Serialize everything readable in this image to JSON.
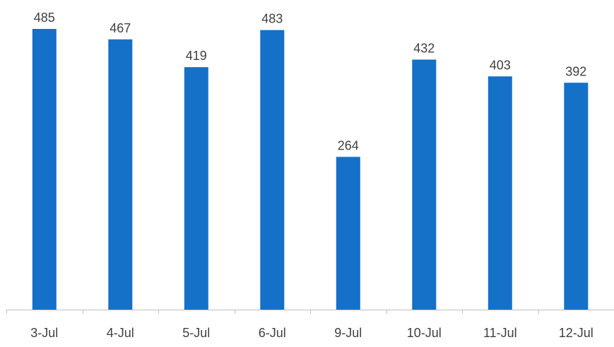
{
  "chart_data": {
    "type": "bar",
    "categories": [
      "3-Jul",
      "4-Jul",
      "5-Jul",
      "6-Jul",
      "9-Jul",
      "10-Jul",
      "11-Jul",
      "12-Jul"
    ],
    "values": [
      485,
      467,
      419,
      483,
      264,
      432,
      403,
      392
    ],
    "title": "",
    "xlabel": "",
    "ylabel": "",
    "ylim": [
      0,
      500
    ],
    "grid": false,
    "legend": "none",
    "data_labels": true,
    "bar_color": "#1570c8",
    "text_color": "#404040",
    "axis_color": "#bfbfbf"
  }
}
